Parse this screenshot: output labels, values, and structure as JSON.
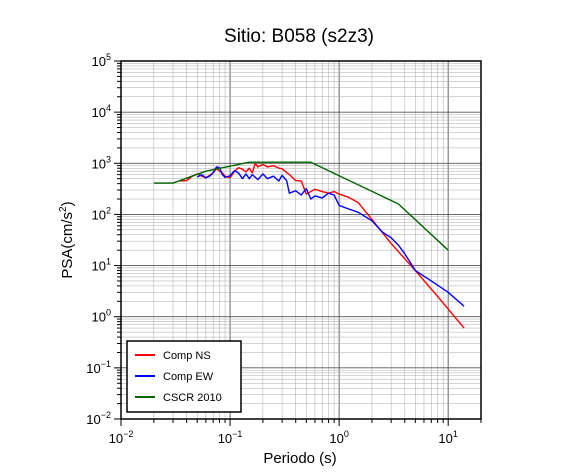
{
  "chart_data": {
    "type": "line",
    "title": "Sitio: B058 (s2z3)",
    "xlabel": "Periodo (s)",
    "ylabel_main": "PSA(cm/s",
    "ylabel_sup": "2",
    "ylabel_end": ")",
    "x_scale": "log",
    "y_scale": "log",
    "xlim": [
      0.01,
      20
    ],
    "ylim": [
      0.01,
      100000
    ],
    "grid": true,
    "legend_position": "bottom-left",
    "x_ticks": [
      {
        "value": 0.01,
        "base": "10",
        "exp": "−2"
      },
      {
        "value": 0.1,
        "base": "10",
        "exp": "−1"
      },
      {
        "value": 1,
        "base": "10",
        "exp": "0"
      },
      {
        "value": 10,
        "base": "10",
        "exp": "1"
      }
    ],
    "y_ticks": [
      {
        "value": 0.01,
        "base": "10",
        "exp": "−2"
      },
      {
        "value": 0.1,
        "base": "10",
        "exp": "−1"
      },
      {
        "value": 1,
        "base": "10",
        "exp": "0"
      },
      {
        "value": 10,
        "base": "10",
        "exp": "1"
      },
      {
        "value": 100,
        "base": "10",
        "exp": "2"
      },
      {
        "value": 1000,
        "base": "10",
        "exp": "3"
      },
      {
        "value": 10000,
        "base": "10",
        "exp": "4"
      },
      {
        "value": 100000,
        "base": "10",
        "exp": "5"
      }
    ],
    "series": [
      {
        "name": "Comp NS",
        "color": "#ff0000",
        "points": [
          [
            0.035,
            450
          ],
          [
            0.04,
            460
          ],
          [
            0.045,
            560
          ],
          [
            0.05,
            620
          ],
          [
            0.055,
            560
          ],
          [
            0.06,
            520
          ],
          [
            0.065,
            580
          ],
          [
            0.07,
            650
          ],
          [
            0.075,
            790
          ],
          [
            0.08,
            700
          ],
          [
            0.085,
            650
          ],
          [
            0.09,
            560
          ],
          [
            0.1,
            520
          ],
          [
            0.11,
            700
          ],
          [
            0.12,
            820
          ],
          [
            0.13,
            760
          ],
          [
            0.14,
            680
          ],
          [
            0.15,
            800
          ],
          [
            0.16,
            650
          ],
          [
            0.17,
            1000
          ],
          [
            0.18,
            850
          ],
          [
            0.2,
            950
          ],
          [
            0.22,
            850
          ],
          [
            0.25,
            900
          ],
          [
            0.28,
            800
          ],
          [
            0.3,
            780
          ],
          [
            0.35,
            600
          ],
          [
            0.4,
            460
          ],
          [
            0.45,
            450
          ],
          [
            0.5,
            250
          ],
          [
            0.55,
            280
          ],
          [
            0.6,
            310
          ],
          [
            0.7,
            280
          ],
          [
            0.8,
            260
          ],
          [
            0.9,
            280
          ],
          [
            1.0,
            250
          ],
          [
            1.2,
            220
          ],
          [
            1.5,
            170
          ],
          [
            2.0,
            80
          ],
          [
            3.0,
            27
          ],
          [
            5.0,
            8
          ],
          [
            8.0,
            2.5
          ],
          [
            14.0,
            0.6
          ]
        ]
      },
      {
        "name": "Comp EW",
        "color": "#0000ff",
        "points": [
          [
            0.05,
            540
          ],
          [
            0.055,
            600
          ],
          [
            0.06,
            520
          ],
          [
            0.065,
            560
          ],
          [
            0.07,
            650
          ],
          [
            0.075,
            850
          ],
          [
            0.08,
            820
          ],
          [
            0.085,
            600
          ],
          [
            0.09,
            530
          ],
          [
            0.1,
            570
          ],
          [
            0.11,
            720
          ],
          [
            0.12,
            640
          ],
          [
            0.13,
            500
          ],
          [
            0.14,
            620
          ],
          [
            0.15,
            500
          ],
          [
            0.16,
            600
          ],
          [
            0.18,
            480
          ],
          [
            0.2,
            620
          ],
          [
            0.22,
            500
          ],
          [
            0.25,
            560
          ],
          [
            0.28,
            450
          ],
          [
            0.3,
            580
          ],
          [
            0.33,
            460
          ],
          [
            0.35,
            260
          ],
          [
            0.4,
            290
          ],
          [
            0.45,
            240
          ],
          [
            0.5,
            320
          ],
          [
            0.55,
            200
          ],
          [
            0.6,
            230
          ],
          [
            0.7,
            210
          ],
          [
            0.8,
            260
          ],
          [
            0.9,
            240
          ],
          [
            1.0,
            150
          ],
          [
            1.2,
            130
          ],
          [
            1.5,
            110
          ],
          [
            2.0,
            75
          ],
          [
            2.5,
            45
          ],
          [
            3.0,
            35
          ],
          [
            3.5,
            25
          ],
          [
            4.0,
            17
          ],
          [
            5.0,
            8
          ],
          [
            7.0,
            5
          ],
          [
            10.0,
            3
          ],
          [
            14.0,
            1.6
          ]
        ]
      },
      {
        "name": "CSCR 2010",
        "color": "#006400",
        "points": [
          [
            0.02,
            410
          ],
          [
            0.03,
            410
          ],
          [
            0.06,
            700
          ],
          [
            0.15,
            1050
          ],
          [
            0.55,
            1050
          ],
          [
            3.5,
            160
          ],
          [
            10.0,
            20
          ]
        ]
      }
    ]
  }
}
